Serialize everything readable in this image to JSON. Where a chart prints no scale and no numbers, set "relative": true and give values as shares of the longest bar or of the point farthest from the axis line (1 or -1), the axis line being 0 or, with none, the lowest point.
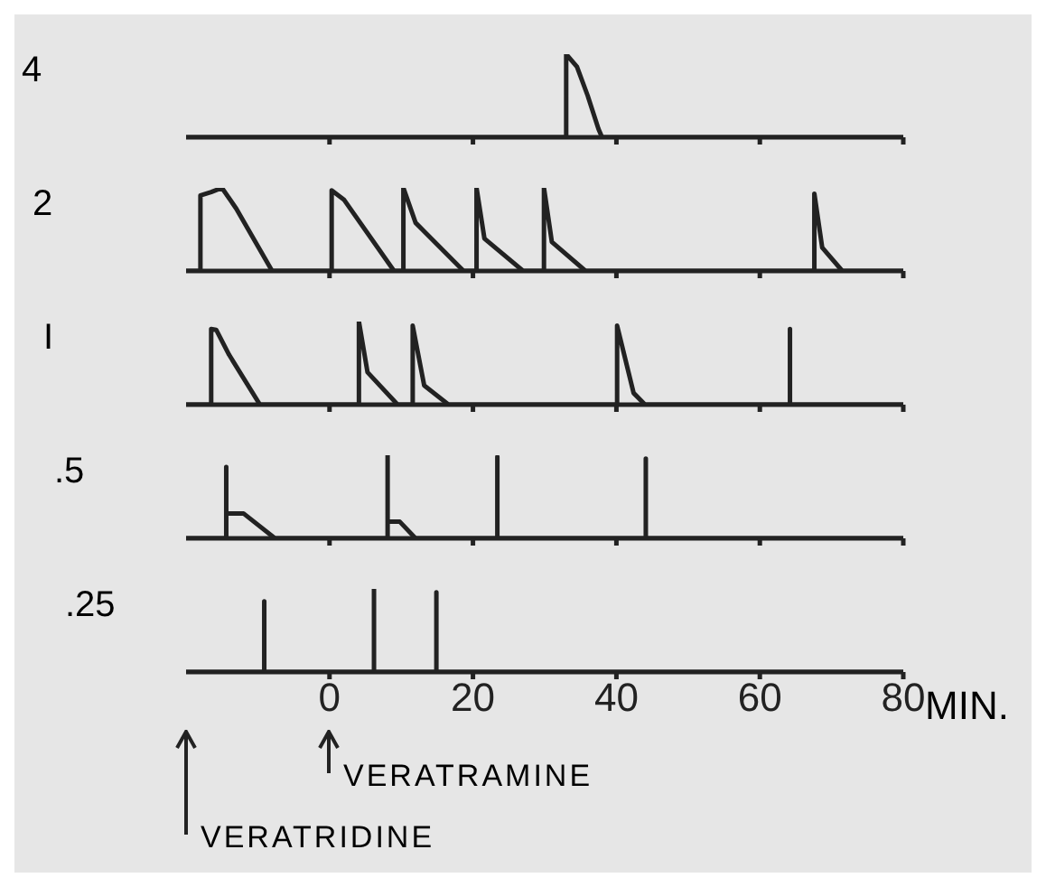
{
  "chart_data": [
    {
      "type": "line",
      "ylabel": "4",
      "relative": true,
      "color": "#222222",
      "xlim": [
        -20,
        80
      ],
      "xticks": [
        0,
        20,
        40,
        60,
        80
      ],
      "tick_labels": false,
      "x": [
        -20,
        33,
        33,
        34.5,
        36,
        37.5,
        38,
        80
      ],
      "values": [
        0,
        0,
        1,
        0.85,
        0.5,
        0.1,
        0,
        0
      ]
    },
    {
      "type": "line",
      "ylabel": "2",
      "relative": true,
      "color": "#222222",
      "xlim": [
        -20,
        80
      ],
      "xticks": [
        0,
        20,
        40,
        60,
        80
      ],
      "tick_labels": false,
      "x": [
        -20,
        -18,
        -18,
        -16.5,
        -15,
        -13,
        -8,
        0.3,
        0.3,
        2,
        9,
        10.3,
        10.3,
        12,
        18.7,
        20.5,
        20.5,
        21.6,
        27,
        29.9,
        29.9,
        31,
        35.7,
        67.6,
        67.6,
        68.7,
        71.5,
        80
      ],
      "values": [
        0,
        0,
        0.91,
        0.95,
        1,
        0.75,
        0,
        0,
        0.97,
        0.86,
        0,
        0,
        1,
        0.58,
        0,
        0,
        1,
        0.39,
        0,
        0,
        1,
        0.35,
        0,
        0,
        0.93,
        0.28,
        0,
        0
      ]
    },
    {
      "type": "line",
      "ylabel": "I",
      "relative": true,
      "color": "#222222",
      "xlim": [
        -20,
        80
      ],
      "xticks": [
        0,
        20,
        40,
        60,
        80
      ],
      "tick_labels": false,
      "x": [
        -20,
        -16.5,
        -16.5,
        -15.8,
        -14,
        -9.7,
        4.1,
        4.1,
        5.3,
        9.5,
        11.6,
        11.6,
        13.2,
        16.6,
        40.1,
        40.1,
        42.4,
        44,
        64.2,
        64.2,
        64.2,
        80
      ],
      "values": [
        0,
        0,
        0.91,
        0.9,
        0.6,
        0,
        0,
        1,
        0.39,
        0,
        0,
        0.95,
        0.23,
        0,
        0,
        0.95,
        0.14,
        0,
        0,
        0.91,
        0,
        0
      ]
    },
    {
      "type": "line",
      "ylabel": ".5",
      "relative": true,
      "color": "#222222",
      "xlim": [
        -20,
        80
      ],
      "xticks": [
        0,
        20,
        40,
        60,
        80
      ],
      "tick_labels": false,
      "x": [
        -20,
        -14.4,
        -14.4,
        -14.4,
        -12,
        -7.6,
        8.1,
        8.1,
        8.1,
        9.8,
        12,
        23.4,
        23.4,
        23.4,
        44.1,
        44.1,
        44.1,
        80
      ],
      "values": [
        0,
        0,
        0.86,
        0.3,
        0.3,
        0,
        0,
        1,
        0.2,
        0.2,
        0,
        0,
        0.98,
        0,
        0,
        0.96,
        0,
        0
      ]
    },
    {
      "type": "line",
      "ylabel": ".25",
      "xlabel": "MIN.",
      "relative": true,
      "color": "#222222",
      "xlim": [
        -20,
        80
      ],
      "xticks": [
        0,
        20,
        40,
        60,
        80
      ],
      "tick_labels": "x",
      "x": [
        -20,
        -9.1,
        -9.1,
        -9.1,
        6.2,
        6.2,
        6.2,
        14.9,
        14.9,
        14.9,
        80
      ],
      "values": [
        0,
        0,
        0.85,
        0,
        0,
        1,
        0,
        0,
        0.96,
        0,
        0
      ],
      "annotations": [
        "VERATRAMINE",
        "VERATRIDINE"
      ]
    }
  ]
}
